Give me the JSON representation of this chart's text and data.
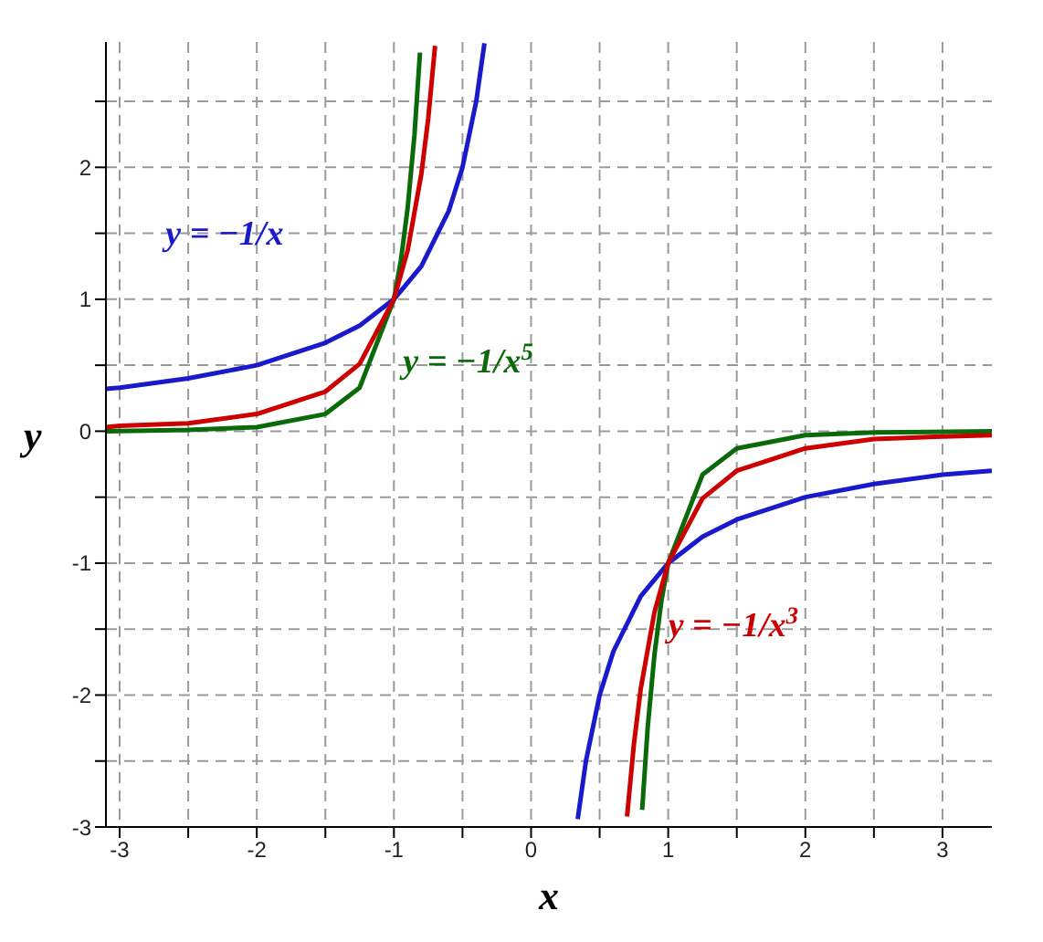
{
  "chart_data": {
    "type": "line",
    "xlabel": "x",
    "ylabel": "y",
    "xlim": [
      -3.1,
      3.36
    ],
    "ylim": [
      -3,
      2.95
    ],
    "xticks": [
      -3,
      {
        "value": -2.5,
        "label": null
      },
      -2,
      {
        "value": -1.5,
        "label": null
      },
      -1,
      {
        "value": -0.5,
        "label": null
      },
      0,
      {
        "value": 0.5,
        "label": null
      },
      1,
      {
        "value": 1.5,
        "label": null
      },
      2,
      {
        "value": 2.5,
        "label": null
      },
      3
    ],
    "yticks": [
      -3,
      {
        "value": -2.5,
        "label": null
      },
      -2,
      {
        "value": -1.5,
        "label": null
      },
      -1,
      {
        "value": -0.5,
        "label": null
      },
      0,
      {
        "value": 0.5,
        "label": null
      },
      1,
      {
        "value": 1.5,
        "label": null
      },
      2,
      {
        "value": 2.5,
        "label": null
      }
    ],
    "grid": true,
    "legend": false,
    "line_style": "solid",
    "marker": "none",
    "series": [
      {
        "name": "y = −1/x",
        "color": "#1a1acc",
        "x": [
          -3.1,
          -3,
          -2.5,
          -2,
          -1.5,
          -1.25,
          -1,
          -0.8,
          -0.6,
          -0.5,
          -0.4,
          -0.34,
          0,
          0.34,
          0.4,
          0.5,
          0.6,
          0.8,
          1,
          1.25,
          1.5,
          2,
          2.5,
          3,
          3.36
        ],
        "values": [
          0.32,
          0.33,
          0.4,
          0.5,
          0.67,
          0.8,
          1,
          1.25,
          1.67,
          2,
          2.5,
          2.94,
          null,
          -2.94,
          -2.5,
          -2,
          -1.67,
          -1.25,
          -1,
          -0.8,
          -0.67,
          -0.5,
          -0.4,
          -0.33,
          -0.3
        ]
      },
      {
        "name": "y = −1/x$^{5}$",
        "color": "#0a6a0a",
        "x": [
          -3.1,
          -2.5,
          -2,
          -1.5,
          -1.25,
          -1,
          -0.95,
          -0.9,
          -0.85,
          -0.81,
          0,
          0.81,
          0.85,
          0.9,
          0.95,
          1,
          1.25,
          1.5,
          2,
          2.5,
          3.36
        ],
        "values": [
          0,
          0.01,
          0.03,
          0.13,
          0.33,
          1,
          1.29,
          1.69,
          2.25,
          2.87,
          null,
          -2.87,
          -2.25,
          -1.69,
          -1.29,
          -1,
          -0.33,
          -0.13,
          -0.03,
          -0.01,
          0
        ]
      },
      {
        "name": "y = −1/x$^{3}$",
        "color": "#cc0000",
        "x": [
          -3.1,
          -3,
          -2.5,
          -2,
          -1.5,
          -1.25,
          -1,
          -0.9,
          -0.8,
          -0.75,
          -0.7,
          0,
          0.7,
          0.75,
          0.8,
          0.9,
          1,
          1.25,
          1.5,
          2,
          2.5,
          3,
          3.36
        ],
        "values": [
          0.03,
          0.04,
          0.06,
          0.13,
          0.3,
          0.51,
          1,
          1.37,
          1.95,
          2.37,
          2.92,
          null,
          -2.92,
          -2.37,
          -1.95,
          -1.37,
          -1,
          -0.51,
          -0.3,
          -0.13,
          -0.06,
          -0.04,
          -0.03
        ]
      }
    ]
  }
}
